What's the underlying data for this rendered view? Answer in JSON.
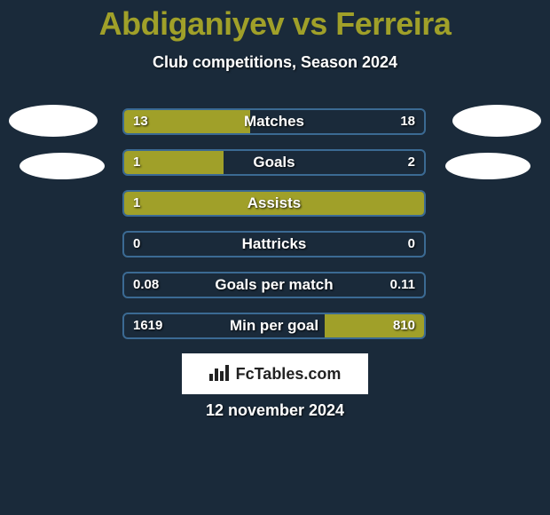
{
  "title": "Abdiganiyev vs Ferreira",
  "subtitle": "Club competitions, Season 2024",
  "date": "12 november 2024",
  "badge_text": "FcTables.com",
  "colors": {
    "background": "#1a2a3a",
    "accent": "#a0a029",
    "bar_border": "#3b6a93",
    "text": "#ffffff",
    "badge_bg": "#ffffff",
    "badge_text": "#222222"
  },
  "rows": [
    {
      "label": "Matches",
      "left_text": "13",
      "right_text": "18",
      "left_pct": 42,
      "right_pct": 0
    },
    {
      "label": "Goals",
      "left_text": "1",
      "right_text": "2",
      "left_pct": 33,
      "right_pct": 0
    },
    {
      "label": "Assists",
      "left_text": "1",
      "right_text": "",
      "left_pct": 100,
      "right_pct": 0
    },
    {
      "label": "Hattricks",
      "left_text": "0",
      "right_text": "0",
      "left_pct": 0,
      "right_pct": 0
    },
    {
      "label": "Goals per match",
      "left_text": "0.08",
      "right_text": "0.11",
      "left_pct": 0,
      "right_pct": 0
    },
    {
      "label": "Min per goal",
      "left_text": "1619",
      "right_text": "810",
      "left_pct": 0,
      "right_pct": 33
    }
  ]
}
